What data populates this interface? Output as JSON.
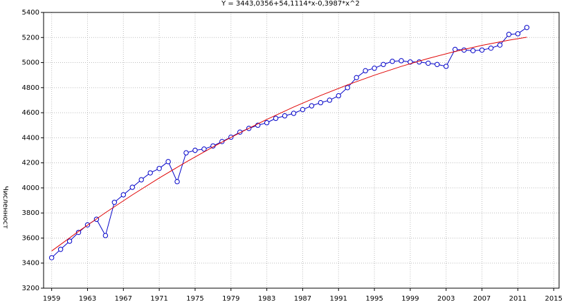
{
  "chart_data": {
    "type": "line",
    "title": "Y = 3443,0356+54,1114*x-0,3987*x^2",
    "y_label": "Численност",
    "xlim": [
      1958.1,
      2015.6
    ],
    "xticks": [
      1959,
      1963,
      1967,
      1971,
      1975,
      1979,
      1983,
      1987,
      1991,
      1995,
      1999,
      2003,
      2007,
      2011,
      2015
    ],
    "ylim": [
      3200,
      5400
    ],
    "yticks": [
      3200,
      3400,
      3600,
      3800,
      4000,
      4200,
      4400,
      4600,
      4800,
      5000,
      5200,
      5400
    ],
    "grid": true,
    "series": [
      {
        "color": "#0000c8",
        "markers": true,
        "x": [
          1959,
          1960,
          1961,
          1962,
          1963,
          1964,
          1965,
          1966,
          1967,
          1968,
          1969,
          1970,
          1971,
          1972,
          1973,
          1974,
          1975,
          1976,
          1977,
          1978,
          1979,
          1980,
          1981,
          1982,
          1983,
          1984,
          1985,
          1986,
          1987,
          1988,
          1989,
          1990,
          1991,
          1992,
          1993,
          1994,
          1995,
          1996,
          1997,
          1998,
          1999,
          2000,
          2001,
          2002,
          2003,
          2004,
          2005,
          2006,
          2007,
          2008,
          2009,
          2010,
          2011,
          2012
        ],
        "values": [
          3443,
          3510,
          3575,
          3645,
          3705,
          3750,
          3620,
          3885,
          3945,
          4005,
          4065,
          4120,
          4155,
          4210,
          4050,
          4280,
          4300,
          4310,
          4335,
          4370,
          4405,
          4445,
          4475,
          4500,
          4520,
          4555,
          4575,
          4595,
          4625,
          4655,
          4680,
          4700,
          4735,
          4800,
          4880,
          4935,
          4955,
          4985,
          5010,
          5015,
          5005,
          5005,
          4995,
          4985,
          4970,
          5105,
          5100,
          5095,
          5100,
          5115,
          5140,
          5225,
          5230,
          5280
        ]
      },
      {
        "color": "#e00000",
        "markers": false,
        "x": [
          1959,
          1962,
          1965,
          1968,
          1971,
          1974,
          1977,
          1980,
          1983,
          1986,
          1989,
          1992,
          1995,
          1998,
          2001,
          2004,
          2007,
          2010,
          2012
        ],
        "values": [
          3496.8,
          3653.1,
          3802.3,
          3944.3,
          4079.1,
          4206.8,
          4327.2,
          4440.5,
          4546.6,
          4645.6,
          4737.3,
          4821.9,
          4899.3,
          4969.6,
          5032.6,
          5088.5,
          5137.2,
          5178.8,
          5202.5
        ]
      }
    ]
  }
}
